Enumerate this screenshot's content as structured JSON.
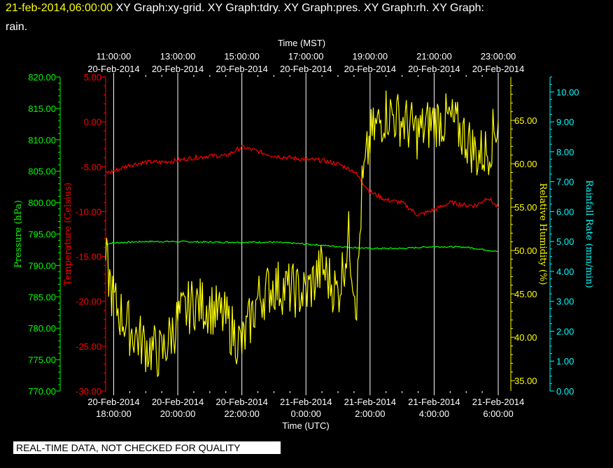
{
  "header": {
    "timestamp": "21-feb-2014,06:00:00",
    "line1_text": "XY Graph:xy-grid.  XY Graph:tdry.  XY Graph:pres.  XY Graph:rh.  XY Graph:",
    "line2_text": "rain."
  },
  "footer": {
    "quality_notice": "REAL-TIME DATA, NOT CHECKED FOR QUALITY"
  },
  "colors": {
    "background": "#000000",
    "pressure": "#00ff00",
    "temperature": "#ff0000",
    "humidity": "#ffff00",
    "rain": "#00ffff",
    "grid": "#ffffff",
    "text": "#ffffff"
  },
  "chart_data": {
    "type": "line",
    "grid": true,
    "x_top": {
      "label": "Time (MST)",
      "ticks": [
        {
          "time": "11:00:00",
          "date": "20-Feb-2014"
        },
        {
          "time": "13:00:00",
          "date": "20-Feb-2014"
        },
        {
          "time": "15:00:00",
          "date": "20-Feb-2014"
        },
        {
          "time": "17:00:00",
          "date": "20-Feb-2014"
        },
        {
          "time": "19:00:00",
          "date": "20-Feb-2014"
        },
        {
          "time": "21:00:00",
          "date": "20-Feb-2014"
        },
        {
          "time": "23:00:00",
          "date": "20-Feb-2014"
        }
      ]
    },
    "x_bottom": {
      "label": "Time (UTC)",
      "range": [
        "2014-02-20T17:45:00",
        "2014-02-21T06:00:00"
      ],
      "ticks": [
        {
          "date": "20-Feb-2014",
          "time": "18:00:00"
        },
        {
          "date": "20-Feb-2014",
          "time": "20:00:00"
        },
        {
          "date": "20-Feb-2014",
          "time": "22:00:00"
        },
        {
          "date": "21-Feb-2014",
          "time": "0:00:00"
        },
        {
          "date": "21-Feb-2014",
          "time": "2:00:00"
        },
        {
          "date": "21-Feb-2014",
          "time": "4:00:00"
        },
        {
          "date": "21-Feb-2014",
          "time": "6:00:00"
        }
      ]
    },
    "axes": {
      "pressure": {
        "label": "Pressure (hPa)",
        "range": [
          770,
          820
        ],
        "ticks": [
          "770.00",
          "775.00",
          "780.00",
          "785.00",
          "790.00",
          "795.00",
          "800.00",
          "805.00",
          "810.00",
          "815.00",
          "820.00"
        ]
      },
      "temperature": {
        "label": "Temperature (Celsius)",
        "range": [
          -30,
          5
        ],
        "ticks": [
          "-30.00",
          "-25.00",
          "-20.00",
          "-15.00",
          "-10.00",
          "-5.00",
          "0.00",
          "5.00"
        ]
      },
      "humidity": {
        "label": "Relative Humidity (%)",
        "range": [
          33.8,
          70
        ],
        "ticks": [
          "35.00",
          "40.00",
          "45.00",
          "50.00",
          "55.00",
          "60.00",
          "65.00"
        ]
      },
      "rain": {
        "label": "Rainfall Rate (mm/min)",
        "range": [
          0,
          10.5
        ],
        "ticks": [
          "0.00",
          "1.00",
          "2.00",
          "3.00",
          "4.00",
          "5.00",
          "6.00",
          "7.00",
          "8.00",
          "9.00",
          "10.00"
        ]
      }
    },
    "series": [
      {
        "name": "pres",
        "axis": "pressure",
        "x": [
          "2014-02-20T17:45",
          "2014-02-20T18:00",
          "2014-02-20T19:00",
          "2014-02-20T20:00",
          "2014-02-20T21:00",
          "2014-02-20T22:00",
          "2014-02-20T23:00",
          "2014-02-21T00:00",
          "2014-02-21T01:00",
          "2014-02-21T02:00",
          "2014-02-21T03:00",
          "2014-02-21T04:00",
          "2014-02-21T05:00",
          "2014-02-21T06:00"
        ],
        "y": [
          793.4,
          793.6,
          793.8,
          793.8,
          793.7,
          793.7,
          793.7,
          793.4,
          793.0,
          792.7,
          792.7,
          793.0,
          792.9,
          792.2
        ]
      },
      {
        "name": "tdry",
        "axis": "temperature",
        "x": [
          "2014-02-20T17:45",
          "2014-02-20T18:00",
          "2014-02-20T18:30",
          "2014-02-20T19:00",
          "2014-02-20T19:30",
          "2014-02-20T20:00",
          "2014-02-20T20:30",
          "2014-02-20T21:00",
          "2014-02-20T21:30",
          "2014-02-20T22:00",
          "2014-02-20T22:30",
          "2014-02-20T23:00",
          "2014-02-20T23:30",
          "2014-02-21T00:00",
          "2014-02-21T00:30",
          "2014-02-21T01:00",
          "2014-02-21T01:30",
          "2014-02-21T02:00",
          "2014-02-21T02:30",
          "2014-02-21T03:00",
          "2014-02-21T03:30",
          "2014-02-21T04:00",
          "2014-02-21T04:30",
          "2014-02-21T05:00",
          "2014-02-21T05:20",
          "2014-02-21T05:40",
          "2014-02-21T06:00"
        ],
        "y": [
          -5.7,
          -5.5,
          -4.8,
          -4.5,
          -4.5,
          -4.3,
          -4.0,
          -3.8,
          -3.8,
          -2.8,
          -3.3,
          -3.8,
          -4.0,
          -4.2,
          -4.3,
          -4.7,
          -5.5,
          -7.8,
          -8.7,
          -9.0,
          -10.4,
          -9.8,
          -9.0,
          -9.3,
          -9.3,
          -8.4,
          -9.6
        ]
      },
      {
        "name": "rh",
        "axis": "humidity",
        "x": [
          "2014-02-20T17:45",
          "2014-02-20T18:00",
          "2014-02-20T18:30",
          "2014-02-20T19:00",
          "2014-02-20T19:30",
          "2014-02-20T20:00",
          "2014-02-20T20:30",
          "2014-02-20T21:00",
          "2014-02-20T21:30",
          "2014-02-20T22:00",
          "2014-02-20T22:30",
          "2014-02-20T23:00",
          "2014-02-20T23:30",
          "2014-02-21T00:00",
          "2014-02-21T00:30",
          "2014-02-21T01:00",
          "2014-02-21T01:20",
          "2014-02-21T01:35",
          "2014-02-21T01:45",
          "2014-02-21T02:00",
          "2014-02-21T02:30",
          "2014-02-21T03:00",
          "2014-02-21T03:30",
          "2014-02-21T04:00",
          "2014-02-21T04:30",
          "2014-02-21T05:00",
          "2014-02-21T05:20",
          "2014-02-21T05:40",
          "2014-02-21T06:00"
        ],
        "y": [
          49.0,
          44.0,
          41.0,
          39.0,
          38.0,
          42.0,
          44.0,
          43.5,
          42.0,
          39.0,
          44.5,
          46.0,
          45.5,
          45.0,
          48.0,
          45.0,
          51.5,
          44.0,
          57.0,
          63.0,
          66.0,
          65.0,
          63.5,
          65.0,
          65.0,
          63.0,
          61.0,
          61.5,
          65.0
        ]
      }
    ]
  }
}
